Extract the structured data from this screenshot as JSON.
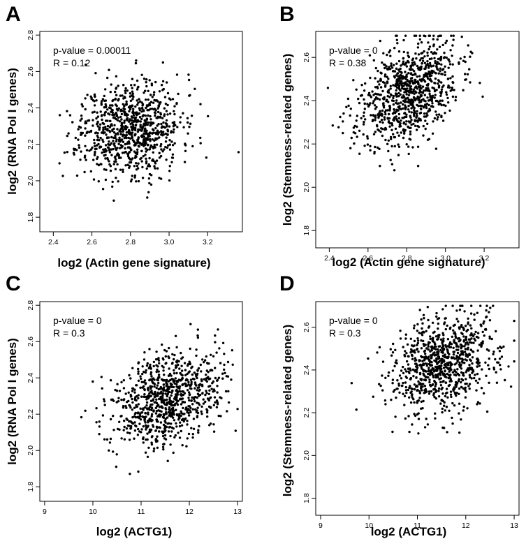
{
  "chart_data": [
    {
      "panel": "A",
      "type": "scatter",
      "xlabel": "log2 (Actin gene signature)",
      "ylabel": "log2 (RNA Pol I genes)",
      "xlim": [
        2.33,
        3.38
      ],
      "ylim": [
        1.72,
        2.82
      ],
      "xticks": [
        "2.4",
        "2.6",
        "2.8",
        "3.0",
        "3.2"
      ],
      "yticks": [
        "1.8",
        "2.0",
        "2.2",
        "2.4",
        "2.6",
        "2.8"
      ],
      "annotations": [
        "p-value = 0.00011",
        "R = 0.12"
      ],
      "cloud": {
        "n": 900,
        "xmean": 2.8,
        "xsd": 0.13,
        "ymean": 2.29,
        "ysd": 0.13,
        "r": 0.12,
        "xmin": 2.36,
        "xmax": 3.36,
        "ymin": 1.75,
        "ymax": 2.66,
        "seed": 11
      }
    },
    {
      "panel": "B",
      "type": "scatter",
      "xlabel": "log2 (Actin gene signature)",
      "ylabel": "log2 (Stemness-related genes)",
      "xlim": [
        2.33,
        3.38
      ],
      "ylim": [
        1.72,
        2.72
      ],
      "xticks": [
        "2.4",
        "2.6",
        "2.8",
        "3.0",
        "3.2"
      ],
      "yticks": [
        "1.8",
        "2.0",
        "2.2",
        "2.4",
        "2.6"
      ],
      "annotations": [
        "p-value = 0",
        "R = 0.38"
      ],
      "cloud": {
        "n": 900,
        "xmean": 2.8,
        "xsd": 0.13,
        "ymean": 2.43,
        "ysd": 0.12,
        "r": 0.38,
        "xmin": 2.36,
        "xmax": 3.36,
        "ymin": 1.76,
        "ymax": 2.7,
        "seed": 23
      }
    },
    {
      "panel": "C",
      "type": "scatter",
      "xlabel": "log2 (ACTG1)",
      "ylabel": "log2 (RNA Pol I genes)",
      "xlim": [
        8.9,
        13.1
      ],
      "ylim": [
        1.72,
        2.82
      ],
      "xticks": [
        "9",
        "10",
        "11",
        "12",
        "13"
      ],
      "yticks": [
        "1.8",
        "2.0",
        "2.2",
        "2.4",
        "2.6",
        "2.8"
      ],
      "annotations": [
        "p-value = 0",
        "R = 0.3"
      ],
      "cloud": {
        "n": 900,
        "xmean": 11.55,
        "xsd": 0.55,
        "ymean": 2.29,
        "ysd": 0.13,
        "r": 0.3,
        "xmin": 9.0,
        "xmax": 13.0,
        "ymin": 1.75,
        "ymax": 2.78,
        "seed": 37
      }
    },
    {
      "panel": "D",
      "type": "scatter",
      "xlabel": "log2 (ACTG1)",
      "ylabel": "log2 (Stemness-related genes)",
      "xlim": [
        8.9,
        13.1
      ],
      "ylim": [
        1.72,
        2.72
      ],
      "xticks": [
        "9",
        "10",
        "11",
        "12",
        "13"
      ],
      "yticks": [
        "1.8",
        "2.0",
        "2.2",
        "2.4",
        "2.6"
      ],
      "annotations": [
        "p-value = 0",
        "R = 0.3"
      ],
      "cloud": {
        "n": 900,
        "xmean": 11.55,
        "xsd": 0.55,
        "ymean": 2.43,
        "ysd": 0.12,
        "r": 0.3,
        "xmin": 9.0,
        "xmax": 13.0,
        "ymin": 1.76,
        "ymax": 2.7,
        "seed": 53
      }
    }
  ]
}
